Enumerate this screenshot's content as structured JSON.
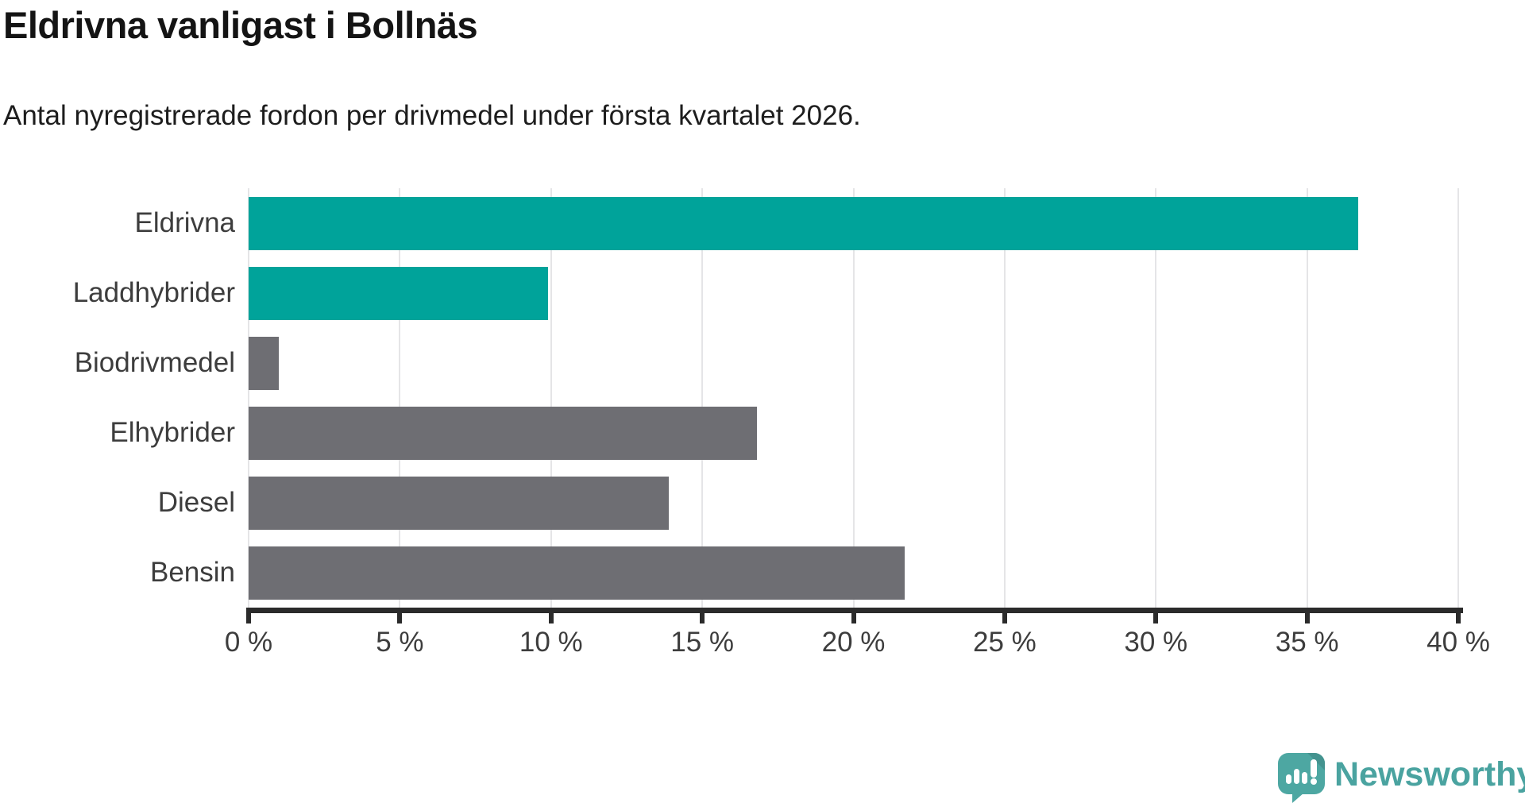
{
  "header": {
    "title": "Eldrivna vanligast i Bollnäs",
    "subtitle": "Antal nyregistrerade fordon per drivmedel under första kvartalet 2026."
  },
  "chart_data": {
    "type": "bar",
    "orientation": "horizontal",
    "title": "Eldrivna vanligast i Bollnäs",
    "xlabel": "",
    "ylabel": "",
    "unit": "%",
    "xlim": [
      0,
      40
    ],
    "grid": true,
    "legend": "none",
    "categories": [
      "Eldrivna",
      "Laddhybrider",
      "Biodrivmedel",
      "Elhybrider",
      "Diesel",
      "Bensin"
    ],
    "values": [
      36.7,
      9.9,
      1.0,
      16.8,
      13.9,
      21.7
    ],
    "x_ticks": [
      0,
      5,
      10,
      15,
      20,
      25,
      30,
      35,
      40
    ],
    "x_tick_labels": [
      "0 %",
      "5 %",
      "10 %",
      "15 %",
      "20 %",
      "25 %",
      "30 %",
      "35 %",
      "40 %"
    ],
    "highlight_categories": [
      "Eldrivna",
      "Laddhybrider"
    ]
  },
  "style": {
    "highlight_color": "#00A39A",
    "bar_color": "#6E6E73",
    "gridline_color": "#E5E5E7",
    "axis_color": "#2B2B2B",
    "label_color": "#3D3D3D"
  },
  "footer": {
    "brand": "Newsworthy",
    "logo_icon": "speech-bubble-bar-chart-icon"
  }
}
